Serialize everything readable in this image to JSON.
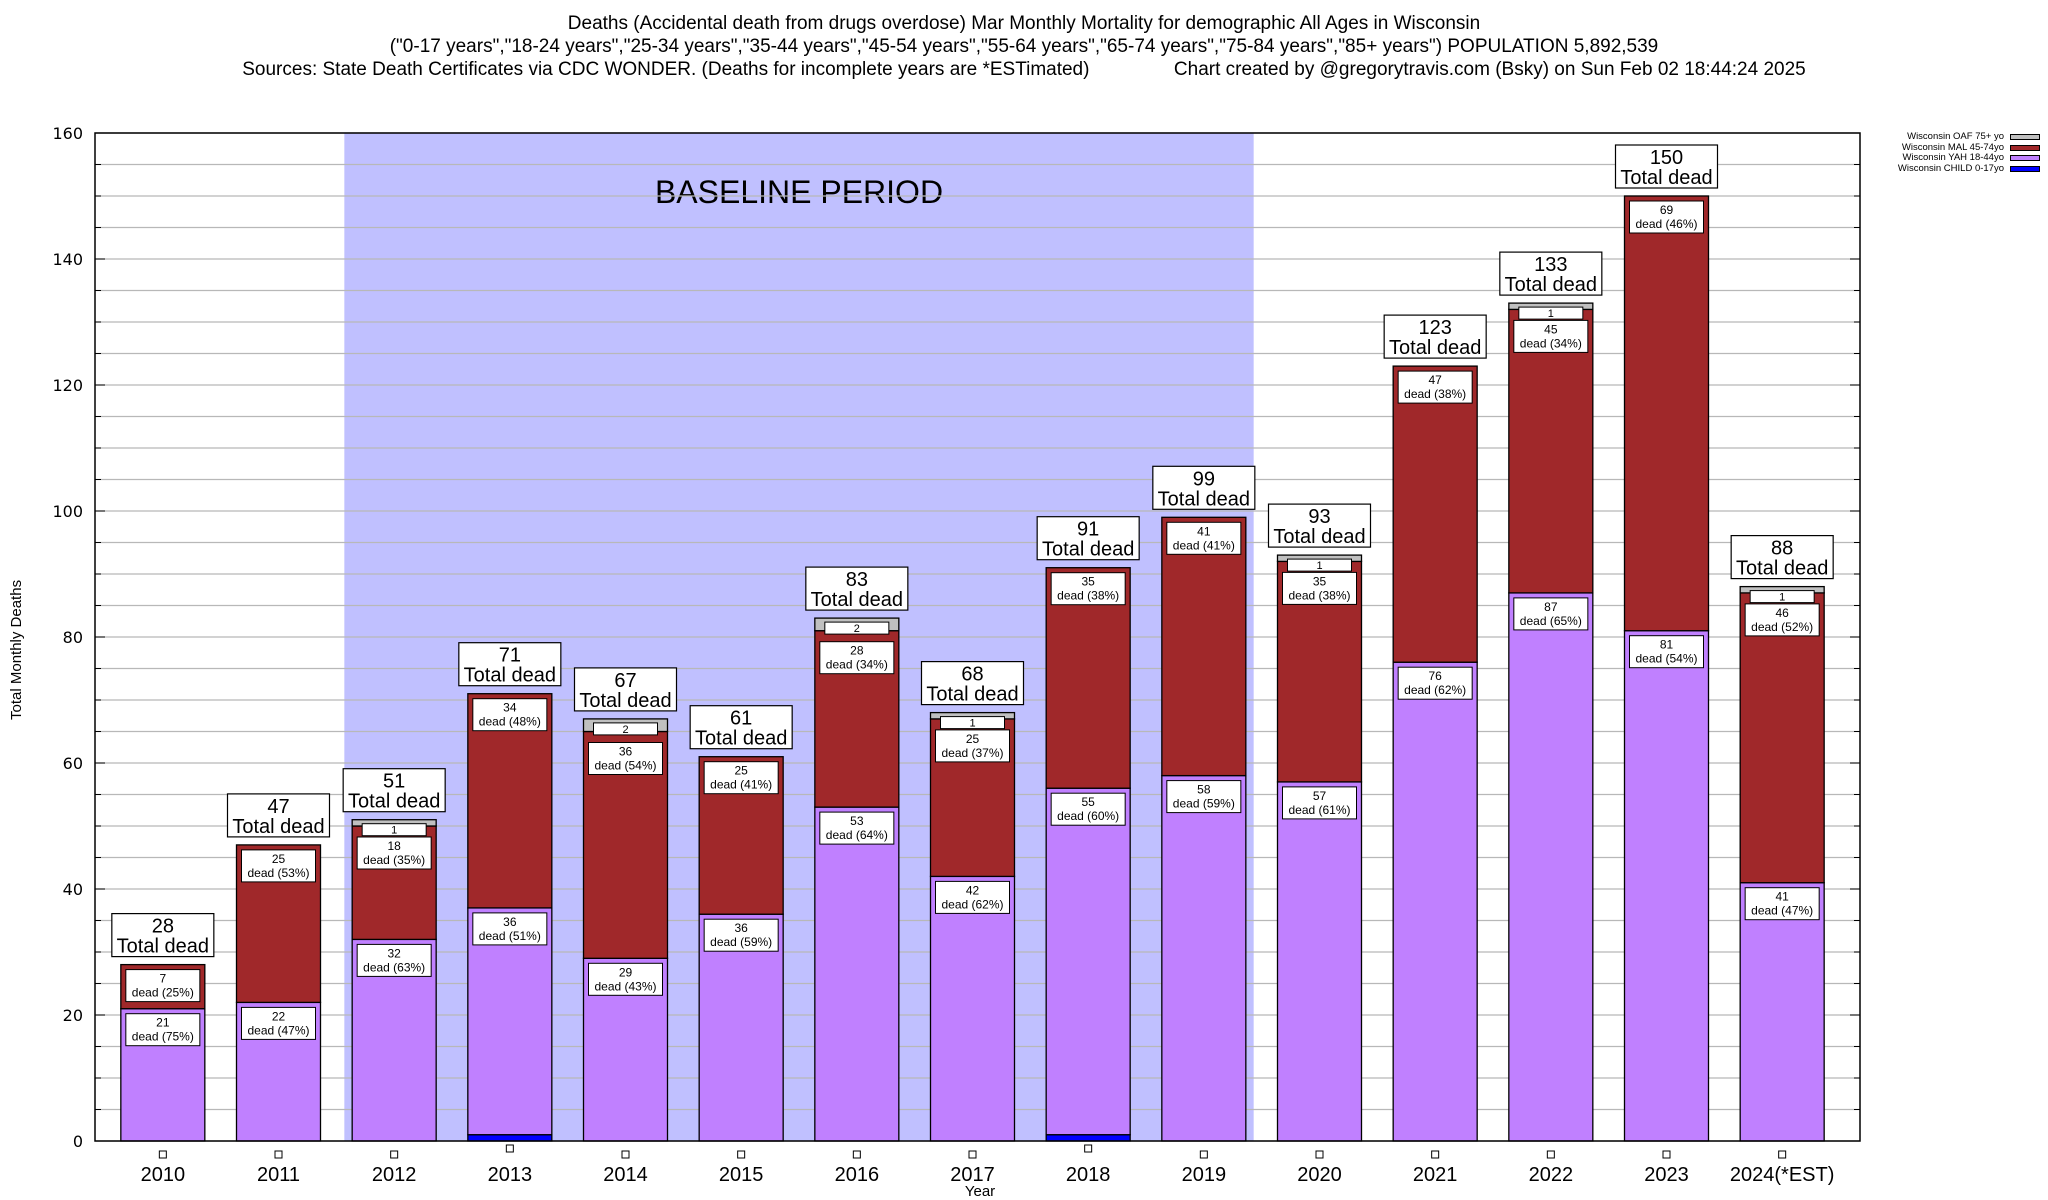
{
  "header": {
    "title_line1": "Deaths (Accidental death from drugs overdose) Mar Monthly Mortality for demographic All Ages in Wisconsin",
    "title_line2": "(\"0-17 years\",\"18-24 years\",\"25-34 years\",\"35-44 years\",\"45-54 years\",\"55-64 years\",\"65-74 years\",\"75-84 years\",\"85+ years\") POPULATION 5,892,539",
    "title_line3": "Sources: State Death Certificates via CDC WONDER. (Deaths for incomplete years are *ESTimated)                Chart created by @gregorytravis.com (Bsky) on Sun Feb 02 18:44:24 2025"
  },
  "chart_data": {
    "type": "bar",
    "stacked": true,
    "title": "Deaths (Accidental death from drugs overdose) Mar Monthly Mortality for demographic All Ages in Wisconsin",
    "xlabel": "Year",
    "ylabel": "Total Monthly Deaths",
    "ylim": [
      0,
      160
    ],
    "yticks": [
      0,
      20,
      40,
      60,
      80,
      100,
      120,
      140,
      160
    ],
    "grid": true,
    "legend_position": "top-right",
    "categories": [
      "2010",
      "2011",
      "2012",
      "2013",
      "2014",
      "2015",
      "2016",
      "2017",
      "2018",
      "2019",
      "2020",
      "2021",
      "2022",
      "2023",
      "2024(*EST)"
    ],
    "series": [
      {
        "name": "Wisconsin CHILD 0-17yo",
        "color": "#0000ff",
        "values": [
          0,
          0,
          0,
          1,
          0,
          0,
          0,
          0,
          1,
          0,
          0,
          0,
          0,
          0,
          0
        ]
      },
      {
        "name": "Wisconsin YAH 18-44yo",
        "color": "#c080ff",
        "values": [
          21,
          22,
          32,
          36,
          29,
          36,
          53,
          42,
          55,
          58,
          57,
          76,
          87,
          81,
          41
        ],
        "labels": [
          "21\ndead (75%)",
          "22\ndead (47%)",
          "32\ndead (63%)",
          "36\ndead (51%)",
          "29\ndead (43%)",
          "36\ndead (59%)",
          "53\ndead (64%)",
          "42\ndead (62%)",
          "55\ndead (60%)",
          "58\ndead (59%)",
          "57\ndead (61%)",
          "76\ndead (62%)",
          "87\ndead (65%)",
          "81\ndead (54%)",
          "41\ndead (47%)"
        ]
      },
      {
        "name": "Wisconsin MAL 45-74yo",
        "color": "#a0282a",
        "values": [
          7,
          25,
          18,
          34,
          36,
          25,
          28,
          25,
          35,
          41,
          35,
          47,
          45,
          69,
          46
        ],
        "labels": [
          "7\ndead (25%)",
          "25\ndead (53%)",
          "18\ndead (35%)",
          "34\ndead (48%)",
          "36\ndead (54%)",
          "25\ndead (41%)",
          "28\ndead (34%)",
          "25\ndead (37%)",
          "35\ndead (38%)",
          "41\ndead (41%)",
          "35\ndead (38%)",
          "47\ndead (38%)",
          "45\ndead (34%)",
          "69\ndead (46%)",
          "46\ndead (52%)"
        ]
      },
      {
        "name": "Wisconsin OAF 75+ yo",
        "color": "#c0c0c0",
        "values": [
          0,
          0,
          1,
          0,
          2,
          0,
          2,
          1,
          0,
          0,
          1,
          0,
          1,
          0,
          1
        ],
        "labels": [
          "",
          "",
          "1",
          "",
          "2",
          "",
          "2",
          "1",
          "",
          "",
          "1",
          "",
          "1",
          "",
          "1"
        ]
      }
    ],
    "totals": [
      28,
      47,
      51,
      71,
      67,
      61,
      83,
      68,
      91,
      99,
      93,
      123,
      133,
      150,
      88
    ],
    "total_label_suffix": "Total dead",
    "annotations": [
      {
        "text": "BASELINE PERIOD",
        "span": [
          "2012",
          "2019"
        ],
        "color": "#c0c0ff"
      }
    ]
  }
}
